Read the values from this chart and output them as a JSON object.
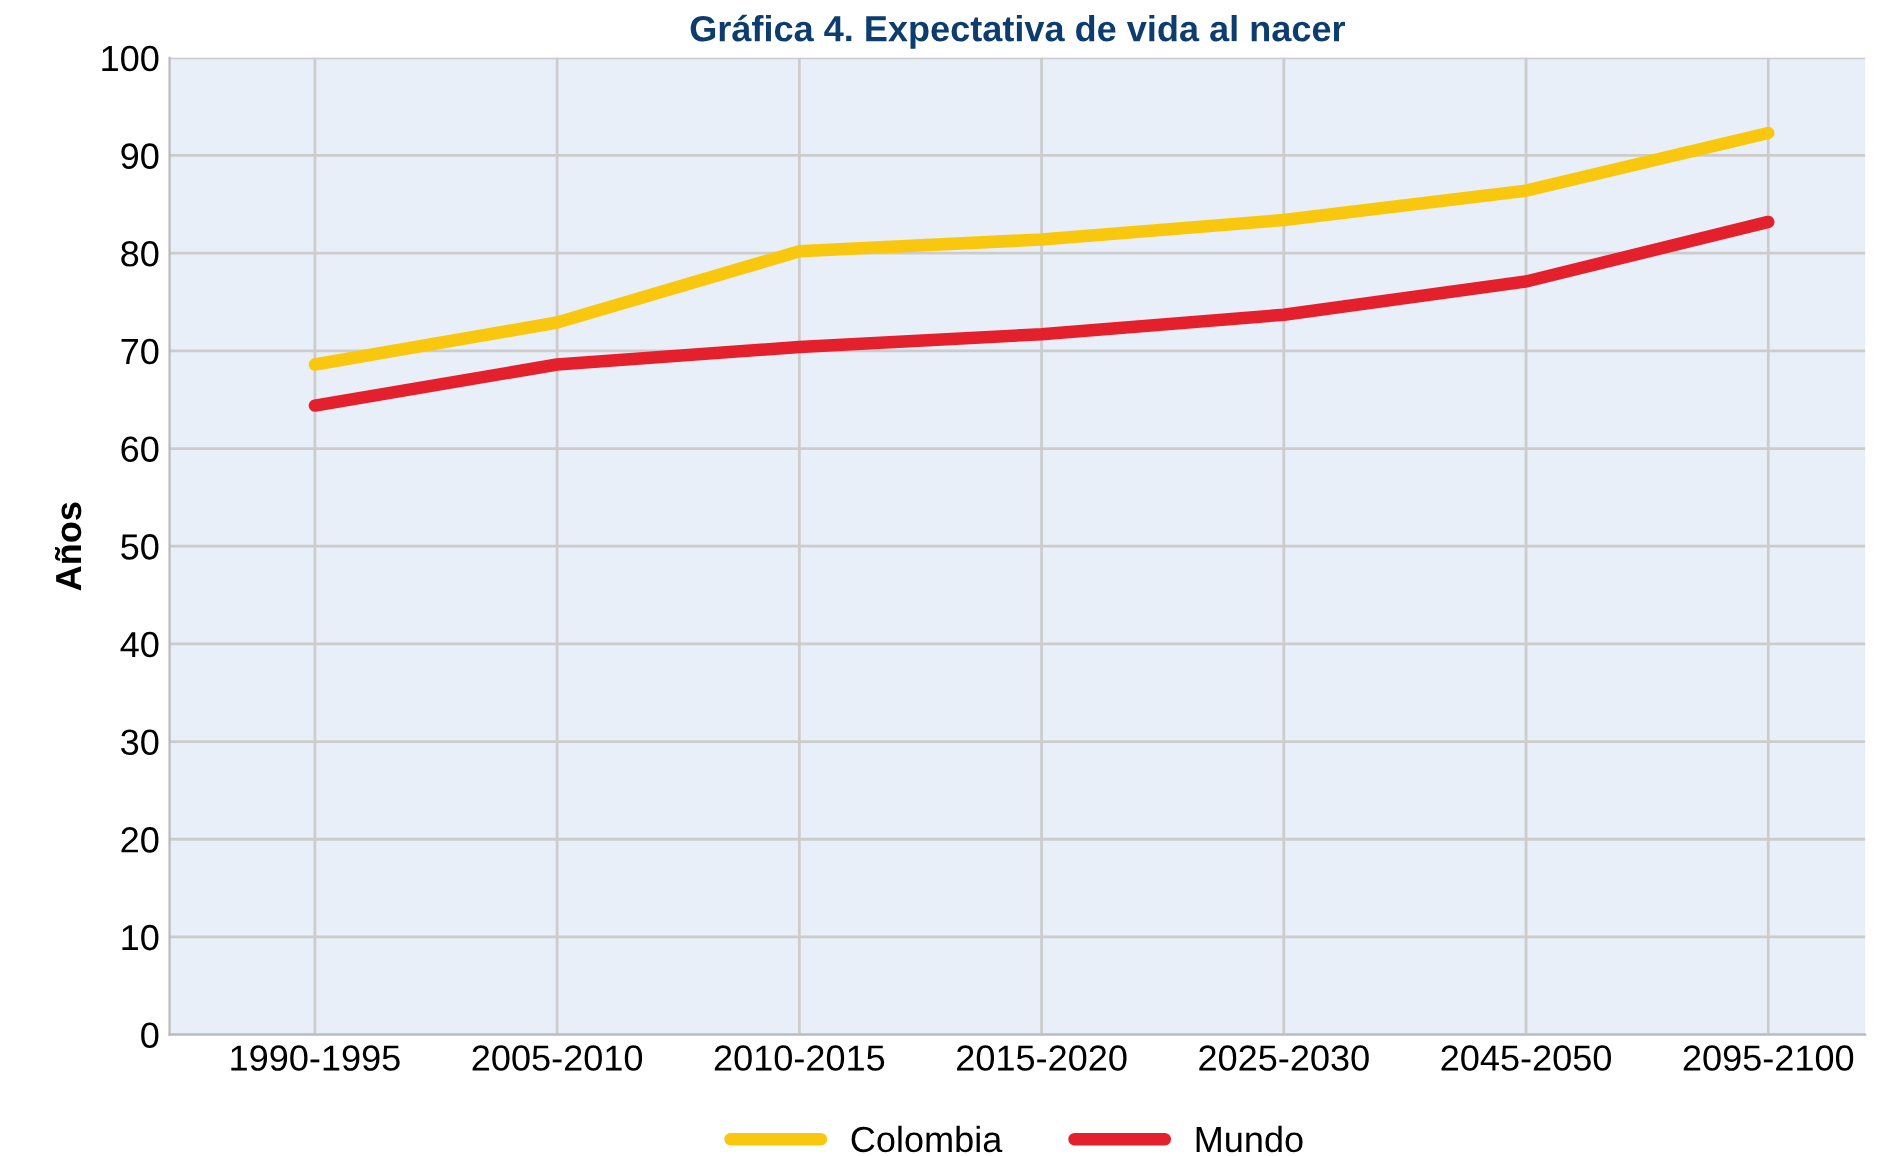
{
  "chart_data": {
    "type": "line",
    "title": "Gráfica 4. Expectativa de vida al nacer",
    "ylabel": "Años",
    "categories": [
      "1990-1995",
      "2005-2010",
      "2010-2015",
      "2015-2020",
      "2025-2030",
      "2045-2050",
      "2095-2100"
    ],
    "series": [
      {
        "name": "Colombia",
        "color": "#f9c80e",
        "values": [
          68.6,
          72.9,
          80.2,
          81.4,
          83.4,
          86.4,
          92.3
        ]
      },
      {
        "name": "Mundo",
        "color": "#e4202c",
        "values": [
          64.4,
          68.6,
          70.4,
          71.7,
          73.7,
          77.1,
          83.2
        ]
      }
    ],
    "ylim": [
      0,
      100
    ],
    "yticks": [
      0,
      10,
      20,
      30,
      40,
      50,
      60,
      70,
      80,
      90,
      100
    ],
    "grid": true,
    "legend": "bottom",
    "marker": "none",
    "line_style": "solid"
  }
}
